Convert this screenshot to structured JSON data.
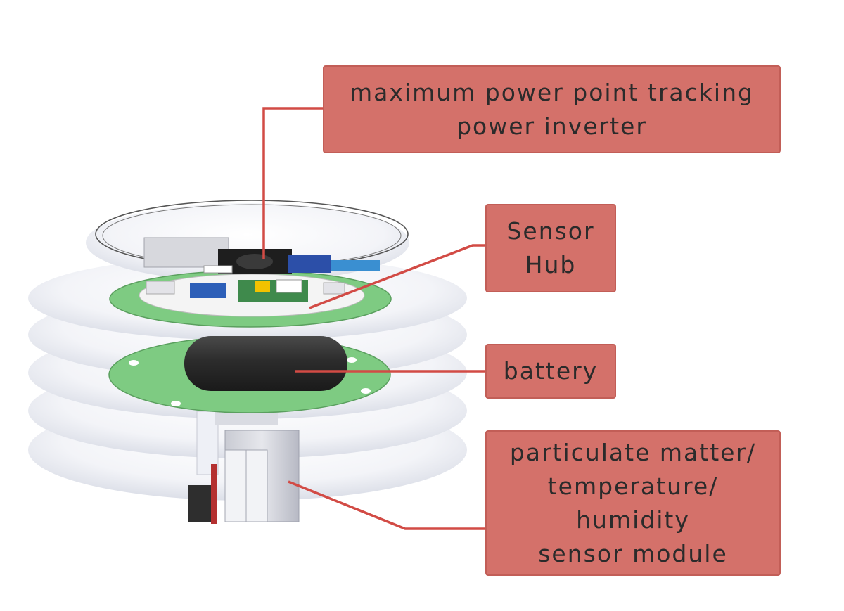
{
  "labels": {
    "mppt": {
      "line1": "maximum power point tracking",
      "line2": "power inverter"
    },
    "sensor_hub": {
      "line1": "Sensor",
      "line2": "Hub"
    },
    "battery": {
      "line1": "battery"
    },
    "pm_sensor": {
      "line1": "particulate matter/",
      "line2": "temperature/",
      "line3": "humidity",
      "line4": "sensor module"
    }
  },
  "colors": {
    "callout_fill": "#d4716a",
    "leader_line": "#d24b45",
    "pcb_green": "#7ecb82",
    "shield_gray": "#e9ebf2"
  }
}
